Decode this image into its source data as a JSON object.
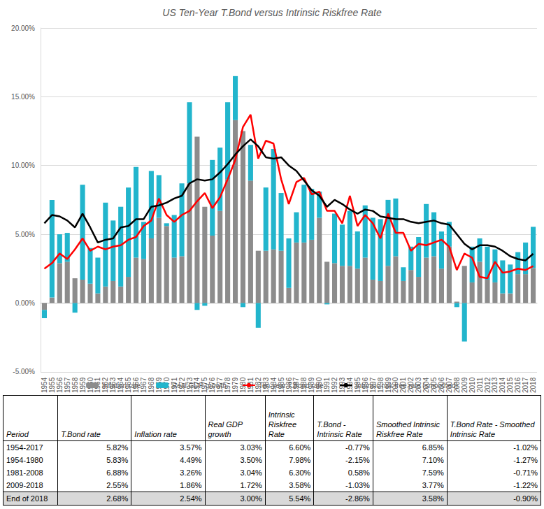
{
  "chart_data": {
    "type": "bar",
    "title": "US Ten-Year T.Bond versus Intrinsic Riskfree Rate",
    "categories": [
      "1954",
      "1955",
      "1956",
      "1957",
      "1958",
      "1959",
      "1960",
      "1961",
      "1962",
      "1963",
      "1964",
      "1965",
      "1966",
      "1967",
      "1968",
      "1969",
      "1970",
      "1971",
      "1972",
      "1973",
      "1974",
      "1975",
      "1976",
      "1977",
      "1978",
      "1979",
      "1980",
      "1981",
      "1982",
      "1983",
      "1984",
      "1985",
      "1986",
      "1987",
      "1988",
      "1989",
      "1990",
      "1991",
      "1992",
      "1993",
      "1994",
      "1995",
      "1996",
      "1997",
      "1998",
      "1999",
      "2000",
      "2001",
      "2002",
      "2003",
      "2004",
      "2005",
      "2006",
      "2007",
      "2008",
      "2009",
      "2010",
      "2011",
      "2012",
      "2013",
      "2014",
      "2015",
      "2016",
      "2017",
      "2018"
    ],
    "stacked": true,
    "grid": true,
    "legend": "bottom",
    "ylim": [
      -5,
      20
    ],
    "yticks": [
      {
        "value": -5,
        "label": "-5.00%"
      },
      {
        "value": 0,
        "label": "0.00%"
      },
      {
        "value": 5,
        "label": "5.00%"
      },
      {
        "value": 10,
        "label": "10.00%"
      },
      {
        "value": 15,
        "label": "15.00%"
      },
      {
        "value": 20,
        "label": "20.00%"
      }
    ],
    "series": [
      {
        "name": "Inflation rate",
        "type": "bar",
        "color": "#8c8c8c",
        "values": [
          -0.5,
          0.4,
          2.9,
          3.0,
          1.8,
          1.7,
          1.4,
          0.7,
          1.2,
          1.6,
          1.2,
          1.9,
          3.3,
          3.2,
          4.7,
          6.2,
          5.6,
          3.3,
          3.4,
          8.7,
          12.1,
          7.0,
          4.9,
          6.7,
          9.0,
          13.3,
          12.5,
          8.9,
          3.8,
          3.8,
          3.9,
          3.8,
          1.1,
          4.4,
          4.4,
          4.6,
          6.2,
          3.0,
          2.9,
          2.7,
          2.7,
          2.5,
          3.3,
          1.7,
          1.6,
          2.7,
          3.4,
          1.6,
          2.4,
          1.9,
          3.3,
          3.4,
          2.5,
          4.1,
          0.1,
          2.7,
          1.5,
          3.0,
          1.7,
          1.5,
          0.7,
          0.7,
          2.1,
          2.1,
          2.54
        ]
      },
      {
        "name": "Real GDP growth",
        "type": "bar",
        "color": "#22b5cc",
        "values": [
          -0.6,
          7.1,
          2.1,
          2.1,
          -0.7,
          6.9,
          2.6,
          2.6,
          6.1,
          4.4,
          5.8,
          6.5,
          6.6,
          2.7,
          4.9,
          3.1,
          0.2,
          3.1,
          5.3,
          5.9,
          -0.5,
          -0.2,
          5.5,
          4.6,
          5.6,
          3.2,
          -0.3,
          2.6,
          -1.8,
          4.6,
          7.3,
          4.2,
          3.6,
          2.2,
          4.2,
          3.7,
          1.9,
          -0.1,
          3.6,
          3.0,
          4.0,
          2.7,
          3.8,
          4.5,
          4.5,
          4.8,
          4.2,
          1.0,
          1.7,
          2.9,
          3.9,
          3.2,
          2.7,
          1.8,
          -0.3,
          -2.8,
          2.6,
          1.7,
          2.4,
          2.4,
          2.4,
          2.1,
          1.6,
          2.3,
          3.0
        ]
      },
      {
        "name": "Ten-year T.Bond rate",
        "type": "line",
        "color": "#ff0000",
        "marker": "none",
        "line_style": "solid",
        "values": [
          2.5,
          2.9,
          3.6,
          3.2,
          3.9,
          4.7,
          3.8,
          4.1,
          3.9,
          4.1,
          4.2,
          4.6,
          4.8,
          5.6,
          6.0,
          7.6,
          6.4,
          5.9,
          6.4,
          6.7,
          7.4,
          8.0,
          6.9,
          7.7,
          9.0,
          10.4,
          12.8,
          13.7,
          10.5,
          11.8,
          11.6,
          9.0,
          7.2,
          8.8,
          9.1,
          7.9,
          8.1,
          6.7,
          6.7,
          5.8,
          7.8,
          5.6,
          6.4,
          5.8,
          4.7,
          6.5,
          5.1,
          5.1,
          3.8,
          4.3,
          4.2,
          4.4,
          4.6,
          4.1,
          2.4,
          3.6,
          3.3,
          1.9,
          1.8,
          3.0,
          2.2,
          2.3,
          2.5,
          2.4,
          2.68
        ]
      },
      {
        "name": "Intrinsic risk free rate (smoothed)",
        "type": "line",
        "color": "#000000",
        "marker": "none",
        "line_style": "solid",
        "values": [
          5.8,
          6.4,
          6.3,
          6.0,
          5.5,
          6.5,
          5.5,
          4.4,
          4.6,
          4.7,
          5.5,
          5.6,
          6.1,
          6.1,
          7.0,
          7.1,
          7.3,
          7.6,
          7.8,
          8.7,
          9.0,
          8.9,
          9.0,
          9.5,
          10.1,
          10.8,
          11.4,
          11.9,
          11.4,
          10.6,
          10.5,
          10.6,
          10.0,
          9.6,
          8.9,
          8.2,
          7.8,
          7.0,
          7.5,
          7.2,
          6.8,
          6.5,
          6.8,
          6.7,
          6.3,
          6.2,
          6.1,
          6.1,
          5.9,
          5.8,
          5.9,
          6.0,
          5.8,
          5.7,
          5.0,
          4.3,
          3.9,
          4.2,
          4.2,
          4.1,
          3.8,
          3.4,
          3.2,
          3.1,
          3.58
        ]
      }
    ]
  },
  "table": {
    "header": [
      "Period",
      "T.Bond rate",
      "Inflation rate",
      "Real GDP growth",
      "Intrinsic Riskfree Rate",
      "T.Bond - Intrinsic Rate",
      "Smoothed Intrinsic Riskfree Rate",
      "T.Bond Rate - Smoothed Intrinsic Rate"
    ],
    "rows": [
      [
        "1954-2017",
        "5.82%",
        "3.57%",
        "3.03%",
        "6.60%",
        "-0.77%",
        "6.85%",
        "-1.02%"
      ],
      [
        "1954-1980",
        "5.83%",
        "4.49%",
        "3.50%",
        "7.98%",
        "-2.15%",
        "7.10%",
        "-1.27%"
      ],
      [
        "1981-2008",
        "6.88%",
        "3.26%",
        "3.04%",
        "6.30%",
        "0.58%",
        "7.59%",
        "-0.71%"
      ],
      [
        "2009-2018",
        "2.55%",
        "1.86%",
        "1.72%",
        "3.58%",
        "-1.03%",
        "3.77%",
        "-1.22%"
      ],
      [
        "End of 2018",
        "2.68%",
        "2.54%",
        "3.00%",
        "5.54%",
        "-2.86%",
        "3.58%",
        "-0.90%"
      ]
    ]
  }
}
